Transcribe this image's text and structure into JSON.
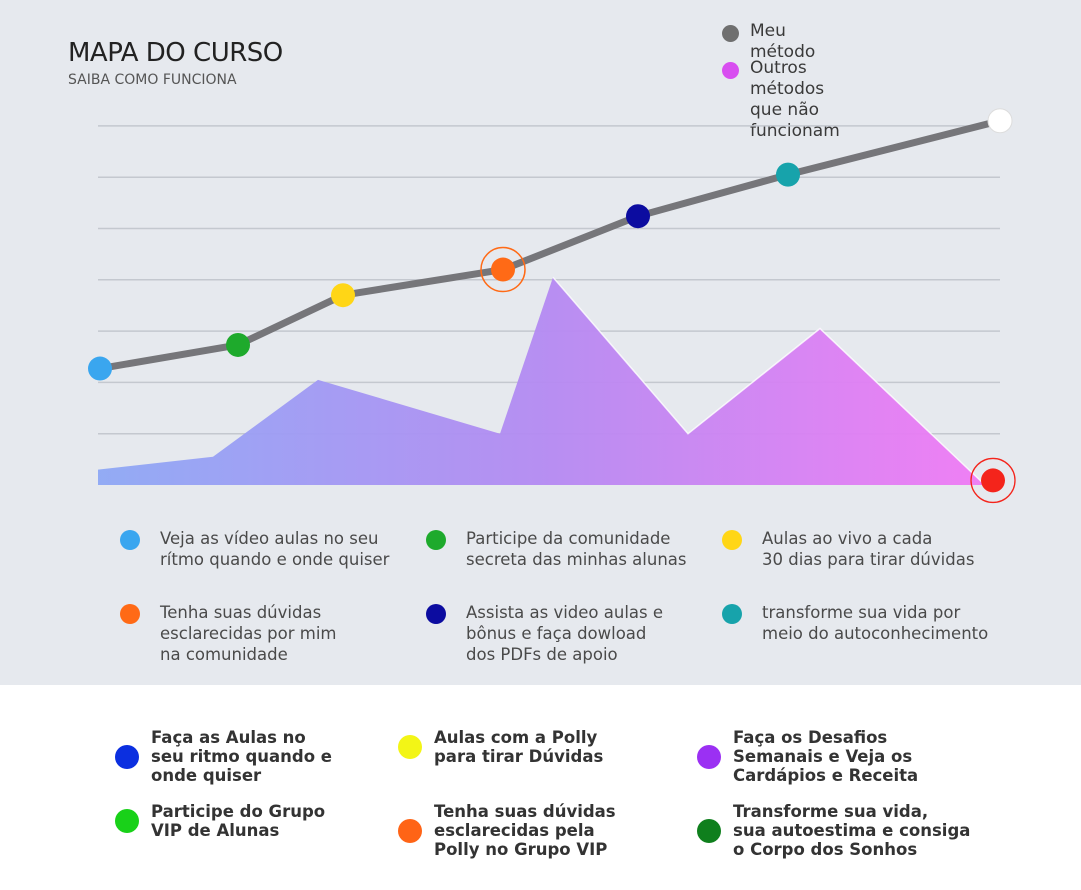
{
  "header": {
    "title": "MAPA DO CURSO",
    "subtitle": "SAIBA COMO FUNCIONA"
  },
  "chart_data": {
    "type": "line",
    "title": "MAPA DO CURSO",
    "subtitle": "SAIBA COMO FUNCIONA",
    "grid": true,
    "legend_position": "top-right",
    "legend": [
      {
        "label": "Meu método",
        "color": "#6f6f6f"
      },
      {
        "label": "Outros métodos\nque não funcionam",
        "color": "#d84ef0"
      }
    ],
    "y_range": [
      0,
      7
    ],
    "series": [
      {
        "name": "Meu método",
        "style": "line",
        "color": "#76767a",
        "points": [
          {
            "x": 100,
            "y": 2.27,
            "color": "#3aa6ef"
          },
          {
            "x": 238,
            "y": 2.73,
            "color": "#1eaa2c"
          },
          {
            "x": 343,
            "y": 3.7,
            "color": "#ffd616"
          },
          {
            "x": 503,
            "y": 4.2,
            "color": "#ff6a16",
            "highlight": true
          },
          {
            "x": 638,
            "y": 5.24,
            "color": "#0c0ca0"
          },
          {
            "x": 788,
            "y": 6.05,
            "color": "#17a3ab"
          },
          {
            "x": 1000,
            "y": 7.1,
            "color": "#ffffff"
          }
        ]
      },
      {
        "name": "Outros métodos\nque não funcionam",
        "style": "area",
        "gradient": [
          "#8ea8f5",
          "#b48af2",
          "#f07af4"
        ],
        "points": [
          {
            "x": 98,
            "y": 0.3
          },
          {
            "x": 213,
            "y": 0.55
          },
          {
            "x": 318,
            "y": 2.05
          },
          {
            "x": 500,
            "y": 1.0
          },
          {
            "x": 553,
            "y": 4.05
          },
          {
            "x": 688,
            "y": 1.0
          },
          {
            "x": 820,
            "y": 3.05
          },
          {
            "x": 985,
            "y": 0.0
          }
        ],
        "end_marker": {
          "x": 993,
          "y": 0.05,
          "color": "#f4241b"
        }
      }
    ]
  },
  "steps_top": [
    {
      "text": "Veja as vídeo aulas no seu\nrítmo quando e  onde quiser",
      "color": "#3aa6ef"
    },
    {
      "text": "Participe da comunidade\nsecreta das minhas alunas",
      "color": "#1eaa2c"
    },
    {
      "text": "Aulas ao vivo a cada\n30 dias para tirar dúvidas",
      "color": "#ffd616"
    },
    {
      "text": "Tenha suas dúvidas\nesclarecidas por mim\nna comunidade",
      "color": "#ff6a16"
    },
    {
      "text": "Assista as video aulas e\nbônus e faça dowload\ndos PDFs de apoio",
      "color": "#0c0ca0"
    },
    {
      "text": "transforme sua vida por\nmeio do autoconhecimento",
      "color": "#17a3ab"
    }
  ],
  "steps_bottom": [
    {
      "text": "Faça as Aulas no\nseu ritmo quando e\nonde quiser",
      "color": "#0b2fe0"
    },
    {
      "text": "Aulas com a Polly\npara tirar Dúvidas",
      "color": "#f3f516"
    },
    {
      "text": "Faça os Desafios\nSemanais e Veja os\nCardápios e Receita",
      "color": "#9b30f3"
    },
    {
      "text": "Participe do Grupo\nVIP de Alunas",
      "color": "#19d119"
    },
    {
      "text": "Tenha suas dúvidas\nesclarecidas pela\nPolly no Grupo VIP",
      "color": "#ff6416"
    },
    {
      "text": "Transforme sua vida,\nsua autoestima e consiga\no Corpo dos Sonhos",
      "color": "#0f7f1d"
    }
  ]
}
